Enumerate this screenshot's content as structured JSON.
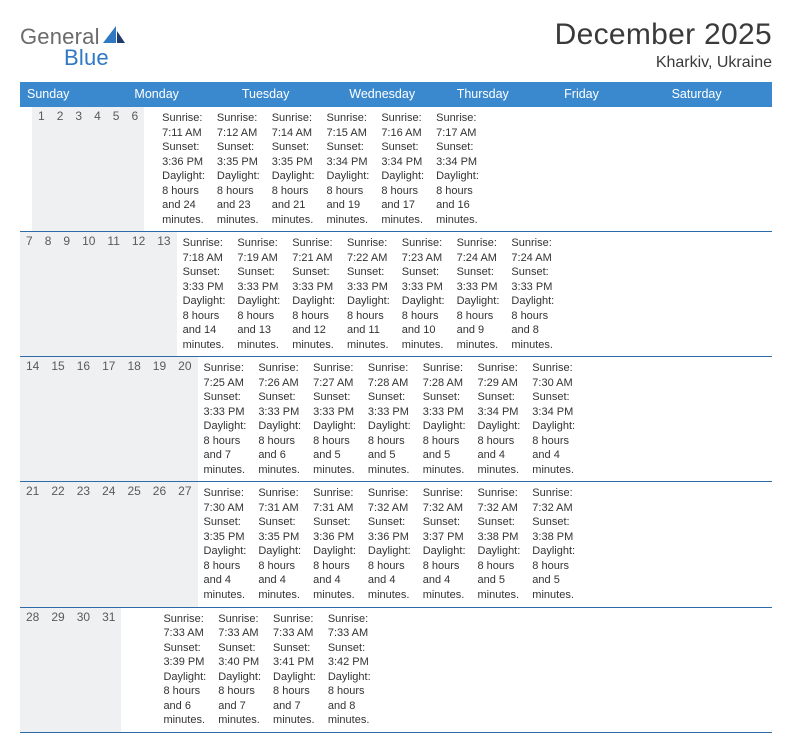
{
  "header": {
    "logo_general": "General",
    "logo_blue": "Blue",
    "title": "December 2025",
    "location": "Kharkiv, Ukraine"
  },
  "colors": {
    "header_band": "#3a89cf",
    "week_divider": "#2f6aa8",
    "daynum_bg": "#eef0f2",
    "text": "#333333",
    "logo_grey": "#6b6b6b",
    "logo_blue": "#2f78c4",
    "background": "#ffffff"
  },
  "day_of_week_labels": [
    "Sunday",
    "Monday",
    "Tuesday",
    "Wednesday",
    "Thursday",
    "Friday",
    "Saturday"
  ],
  "weeks": [
    [
      null,
      {
        "n": "1",
        "sr": "7:11 AM",
        "ss": "3:36 PM",
        "dl": "8 hours and 24 minutes."
      },
      {
        "n": "2",
        "sr": "7:12 AM",
        "ss": "3:35 PM",
        "dl": "8 hours and 23 minutes."
      },
      {
        "n": "3",
        "sr": "7:14 AM",
        "ss": "3:35 PM",
        "dl": "8 hours and 21 minutes."
      },
      {
        "n": "4",
        "sr": "7:15 AM",
        "ss": "3:34 PM",
        "dl": "8 hours and 19 minutes."
      },
      {
        "n": "5",
        "sr": "7:16 AM",
        "ss": "3:34 PM",
        "dl": "8 hours and 17 minutes."
      },
      {
        "n": "6",
        "sr": "7:17 AM",
        "ss": "3:34 PM",
        "dl": "8 hours and 16 minutes."
      }
    ],
    [
      {
        "n": "7",
        "sr": "7:18 AM",
        "ss": "3:33 PM",
        "dl": "8 hours and 14 minutes."
      },
      {
        "n": "8",
        "sr": "7:19 AM",
        "ss": "3:33 PM",
        "dl": "8 hours and 13 minutes."
      },
      {
        "n": "9",
        "sr": "7:21 AM",
        "ss": "3:33 PM",
        "dl": "8 hours and 12 minutes."
      },
      {
        "n": "10",
        "sr": "7:22 AM",
        "ss": "3:33 PM",
        "dl": "8 hours and 11 minutes."
      },
      {
        "n": "11",
        "sr": "7:23 AM",
        "ss": "3:33 PM",
        "dl": "8 hours and 10 minutes."
      },
      {
        "n": "12",
        "sr": "7:24 AM",
        "ss": "3:33 PM",
        "dl": "8 hours and 9 minutes."
      },
      {
        "n": "13",
        "sr": "7:24 AM",
        "ss": "3:33 PM",
        "dl": "8 hours and 8 minutes."
      }
    ],
    [
      {
        "n": "14",
        "sr": "7:25 AM",
        "ss": "3:33 PM",
        "dl": "8 hours and 7 minutes."
      },
      {
        "n": "15",
        "sr": "7:26 AM",
        "ss": "3:33 PM",
        "dl": "8 hours and 6 minutes."
      },
      {
        "n": "16",
        "sr": "7:27 AM",
        "ss": "3:33 PM",
        "dl": "8 hours and 5 minutes."
      },
      {
        "n": "17",
        "sr": "7:28 AM",
        "ss": "3:33 PM",
        "dl": "8 hours and 5 minutes."
      },
      {
        "n": "18",
        "sr": "7:28 AM",
        "ss": "3:33 PM",
        "dl": "8 hours and 5 minutes."
      },
      {
        "n": "19",
        "sr": "7:29 AM",
        "ss": "3:34 PM",
        "dl": "8 hours and 4 minutes."
      },
      {
        "n": "20",
        "sr": "7:30 AM",
        "ss": "3:34 PM",
        "dl": "8 hours and 4 minutes."
      }
    ],
    [
      {
        "n": "21",
        "sr": "7:30 AM",
        "ss": "3:35 PM",
        "dl": "8 hours and 4 minutes."
      },
      {
        "n": "22",
        "sr": "7:31 AM",
        "ss": "3:35 PM",
        "dl": "8 hours and 4 minutes."
      },
      {
        "n": "23",
        "sr": "7:31 AM",
        "ss": "3:36 PM",
        "dl": "8 hours and 4 minutes."
      },
      {
        "n": "24",
        "sr": "7:32 AM",
        "ss": "3:36 PM",
        "dl": "8 hours and 4 minutes."
      },
      {
        "n": "25",
        "sr": "7:32 AM",
        "ss": "3:37 PM",
        "dl": "8 hours and 4 minutes."
      },
      {
        "n": "26",
        "sr": "7:32 AM",
        "ss": "3:38 PM",
        "dl": "8 hours and 5 minutes."
      },
      {
        "n": "27",
        "sr": "7:32 AM",
        "ss": "3:38 PM",
        "dl": "8 hours and 5 minutes."
      }
    ],
    [
      {
        "n": "28",
        "sr": "7:33 AM",
        "ss": "3:39 PM",
        "dl": "8 hours and 6 minutes."
      },
      {
        "n": "29",
        "sr": "7:33 AM",
        "ss": "3:40 PM",
        "dl": "8 hours and 7 minutes."
      },
      {
        "n": "30",
        "sr": "7:33 AM",
        "ss": "3:41 PM",
        "dl": "8 hours and 7 minutes."
      },
      {
        "n": "31",
        "sr": "7:33 AM",
        "ss": "3:42 PM",
        "dl": "8 hours and 8 minutes."
      },
      null,
      null,
      null
    ]
  ],
  "labels": {
    "sunrise_prefix": "Sunrise: ",
    "sunset_prefix": "Sunset: ",
    "daylight_prefix": "Daylight: "
  }
}
